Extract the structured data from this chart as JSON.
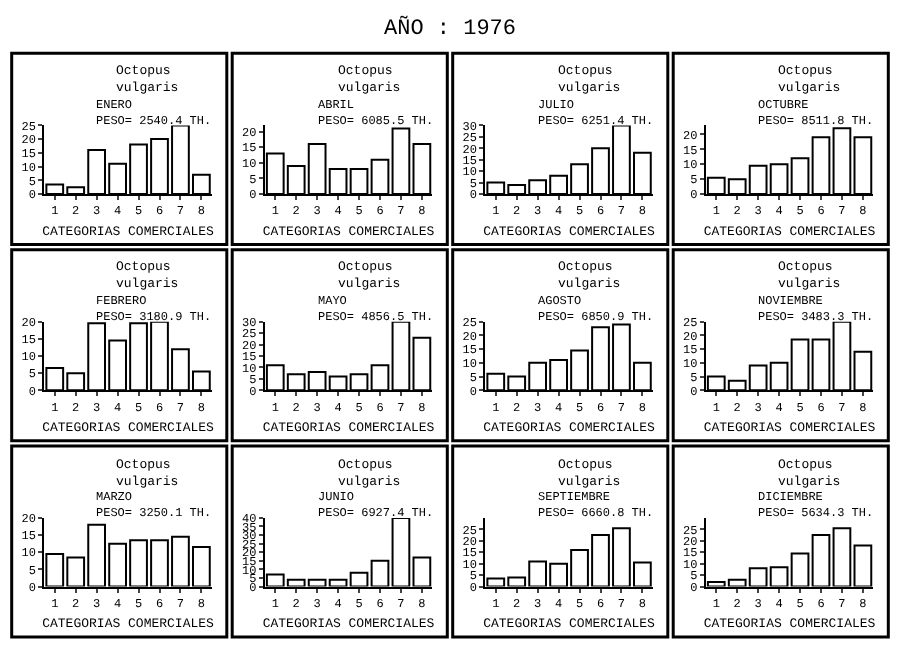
{
  "chart_data": [
    {
      "type": "bar",
      "title": "Octopus vulgaris",
      "subtitle": "ENERO\nPESO= 2540.4 TH.",
      "xlabel": "CATEGORIAS COMERCIALES",
      "annotations": [
        "AÑO : 1976"
      ],
      "categories": [
        "1",
        "2",
        "3",
        "4",
        "5",
        "6",
        "7",
        "8"
      ],
      "values": [
        3.5,
        2.5,
        16,
        11,
        18,
        20,
        25,
        7
      ],
      "color": "#ffffff",
      "ylim": [
        0,
        25
      ],
      "yticks": [
        0,
        5,
        10,
        15,
        20,
        25
      ],
      "grid": false,
      "legend": false
    },
    {
      "type": "bar",
      "title": "Octopus vulgaris",
      "subtitle": "ABRIL\nPESO= 6085.5 TH.",
      "xlabel": "CATEGORIAS COMERCIALES",
      "categories": [
        "1",
        "2",
        "3",
        "4",
        "5",
        "6",
        "7",
        "8"
      ],
      "values": [
        13,
        9,
        16,
        8,
        8,
        11,
        21,
        16
      ],
      "color": "#ffffff",
      "ylim": [
        0,
        22
      ],
      "yticks": [
        0,
        5,
        10,
        15,
        20
      ],
      "grid": false,
      "legend": false
    },
    {
      "type": "bar",
      "title": "Octopus vulgaris",
      "subtitle": "JULIO\nPESO= 6251.4 TH.",
      "xlabel": "CATEGORIAS COMERCIALES",
      "categories": [
        "1",
        "2",
        "3",
        "4",
        "5",
        "6",
        "7",
        "8"
      ],
      "values": [
        5,
        4,
        6,
        8,
        13,
        20,
        30,
        18
      ],
      "color": "#ffffff",
      "ylim": [
        0,
        30
      ],
      "yticks": [
        0,
        5,
        10,
        15,
        20,
        25,
        30
      ],
      "grid": false,
      "legend": false
    },
    {
      "type": "bar",
      "title": "Octopus vulgaris",
      "subtitle": "OCTUBRE\nPESO= 8511.8 TH.",
      "xlabel": "CATEGORIAS COMERCIALES",
      "categories": [
        "1",
        "2",
        "3",
        "4",
        "5",
        "6",
        "7",
        "8"
      ],
      "values": [
        5.5,
        5,
        9.5,
        10,
        12,
        19,
        22,
        19
      ],
      "color": "#ffffff",
      "ylim": [
        0,
        23
      ],
      "yticks": [
        0,
        5,
        10,
        15,
        20
      ],
      "grid": false,
      "legend": false
    },
    {
      "type": "bar",
      "title": "Octopus vulgaris",
      "subtitle": "FEBRERO\nPESO= 3180.9 TH.",
      "xlabel": "CATEGORIAS COMERCIALES",
      "categories": [
        "1",
        "2",
        "3",
        "4",
        "5",
        "6",
        "7",
        "8"
      ],
      "values": [
        6.5,
        5,
        19.5,
        14.5,
        19.5,
        20,
        12,
        5.5
      ],
      "color": "#ffffff",
      "ylim": [
        0,
        20
      ],
      "yticks": [
        0,
        5,
        10,
        15,
        20
      ],
      "grid": false,
      "legend": false
    },
    {
      "type": "bar",
      "title": "Octopus vulgaris",
      "subtitle": "MAYO\nPESO= 4856.5 TH.",
      "xlabel": "CATEGORIAS COMERCIALES",
      "categories": [
        "1",
        "2",
        "3",
        "4",
        "5",
        "6",
        "7",
        "8"
      ],
      "values": [
        11,
        7,
        8,
        6,
        7,
        11,
        30,
        23
      ],
      "color": "#ffffff",
      "ylim": [
        0,
        30
      ],
      "yticks": [
        0,
        5,
        10,
        15,
        20,
        25,
        30
      ],
      "grid": false,
      "legend": false
    },
    {
      "type": "bar",
      "title": "Octopus vulgaris",
      "subtitle": "AGOSTO\nPESO= 6850.9 TH.",
      "xlabel": "CATEGORIAS COMERCIALES",
      "categories": [
        "1",
        "2",
        "3",
        "4",
        "5",
        "6",
        "7",
        "8"
      ],
      "values": [
        6,
        5,
        10,
        11,
        14.5,
        23,
        24,
        10
      ],
      "color": "#ffffff",
      "ylim": [
        0,
        25
      ],
      "yticks": [
        0,
        5,
        10,
        15,
        20,
        25
      ],
      "grid": false,
      "legend": false
    },
    {
      "type": "bar",
      "title": "Octopus vulgaris",
      "subtitle": "NOVIEMBRE\nPESO= 3483.3 TH.",
      "xlabel": "CATEGORIAS COMERCIALES",
      "categories": [
        "1",
        "2",
        "3",
        "4",
        "5",
        "6",
        "7",
        "8"
      ],
      "values": [
        5,
        3.5,
        9,
        10,
        18.5,
        18.5,
        25,
        14
      ],
      "color": "#ffffff",
      "ylim": [
        0,
        25
      ],
      "yticks": [
        0,
        5,
        10,
        15,
        20,
        25
      ],
      "grid": false,
      "legend": false
    },
    {
      "type": "bar",
      "title": "Octopus vulgaris",
      "subtitle": "MARZO\nPESO= 3250.1 TH.",
      "xlabel": "CATEGORIAS COMERCIALES",
      "categories": [
        "1",
        "2",
        "3",
        "4",
        "5",
        "6",
        "7",
        "8"
      ],
      "values": [
        9.5,
        8.5,
        18,
        12.5,
        13.5,
        13.5,
        14.5,
        11.5
      ],
      "color": "#ffffff",
      "ylim": [
        0,
        20
      ],
      "yticks": [
        0,
        5,
        10,
        15,
        20
      ],
      "grid": false,
      "legend": false
    },
    {
      "type": "bar",
      "title": "Octopus vulgaris",
      "subtitle": "JUNIO\nPESO= 6927.4 TH.",
      "xlabel": "CATEGORIAS COMERCIALES",
      "categories": [
        "1",
        "2",
        "3",
        "4",
        "5",
        "6",
        "7",
        "8"
      ],
      "values": [
        7,
        4,
        4,
        4,
        8,
        15,
        40,
        17
      ],
      "color": "#ffffff",
      "ylim": [
        0,
        40
      ],
      "yticks": [
        0,
        5,
        10,
        15,
        20,
        25,
        30,
        35,
        40
      ],
      "grid": false,
      "legend": false
    },
    {
      "type": "bar",
      "title": "Octopus vulgaris",
      "subtitle": "SEPTIEMBRE\nPESO= 6660.8 TH.",
      "xlabel": "CATEGORIAS COMERCIALES",
      "categories": [
        "1",
        "2",
        "3",
        "4",
        "5",
        "6",
        "7",
        "8"
      ],
      "values": [
        3.5,
        4,
        11,
        10,
        16,
        22.5,
        25.5,
        10.5
      ],
      "color": "#ffffff",
      "ylim": [
        0,
        30
      ],
      "yticks": [
        0,
        5,
        10,
        15,
        20,
        25
      ],
      "grid": false,
      "legend": false
    },
    {
      "type": "bar",
      "title": "Octopus vulgaris",
      "subtitle": "DICIEMBRE\nPESO= 5634.3 TH.",
      "xlabel": "CATEGORIAS COMERCIALES",
      "categories": [
        "1",
        "2",
        "3",
        "4",
        "5",
        "6",
        "7",
        "8"
      ],
      "values": [
        2,
        3,
        8,
        8.5,
        14.5,
        22.5,
        25.5,
        18
      ],
      "color": "#ffffff",
      "ylim": [
        0,
        30
      ],
      "yticks": [
        0,
        5,
        10,
        15,
        20,
        25
      ],
      "grid": false,
      "legend": false
    }
  ]
}
